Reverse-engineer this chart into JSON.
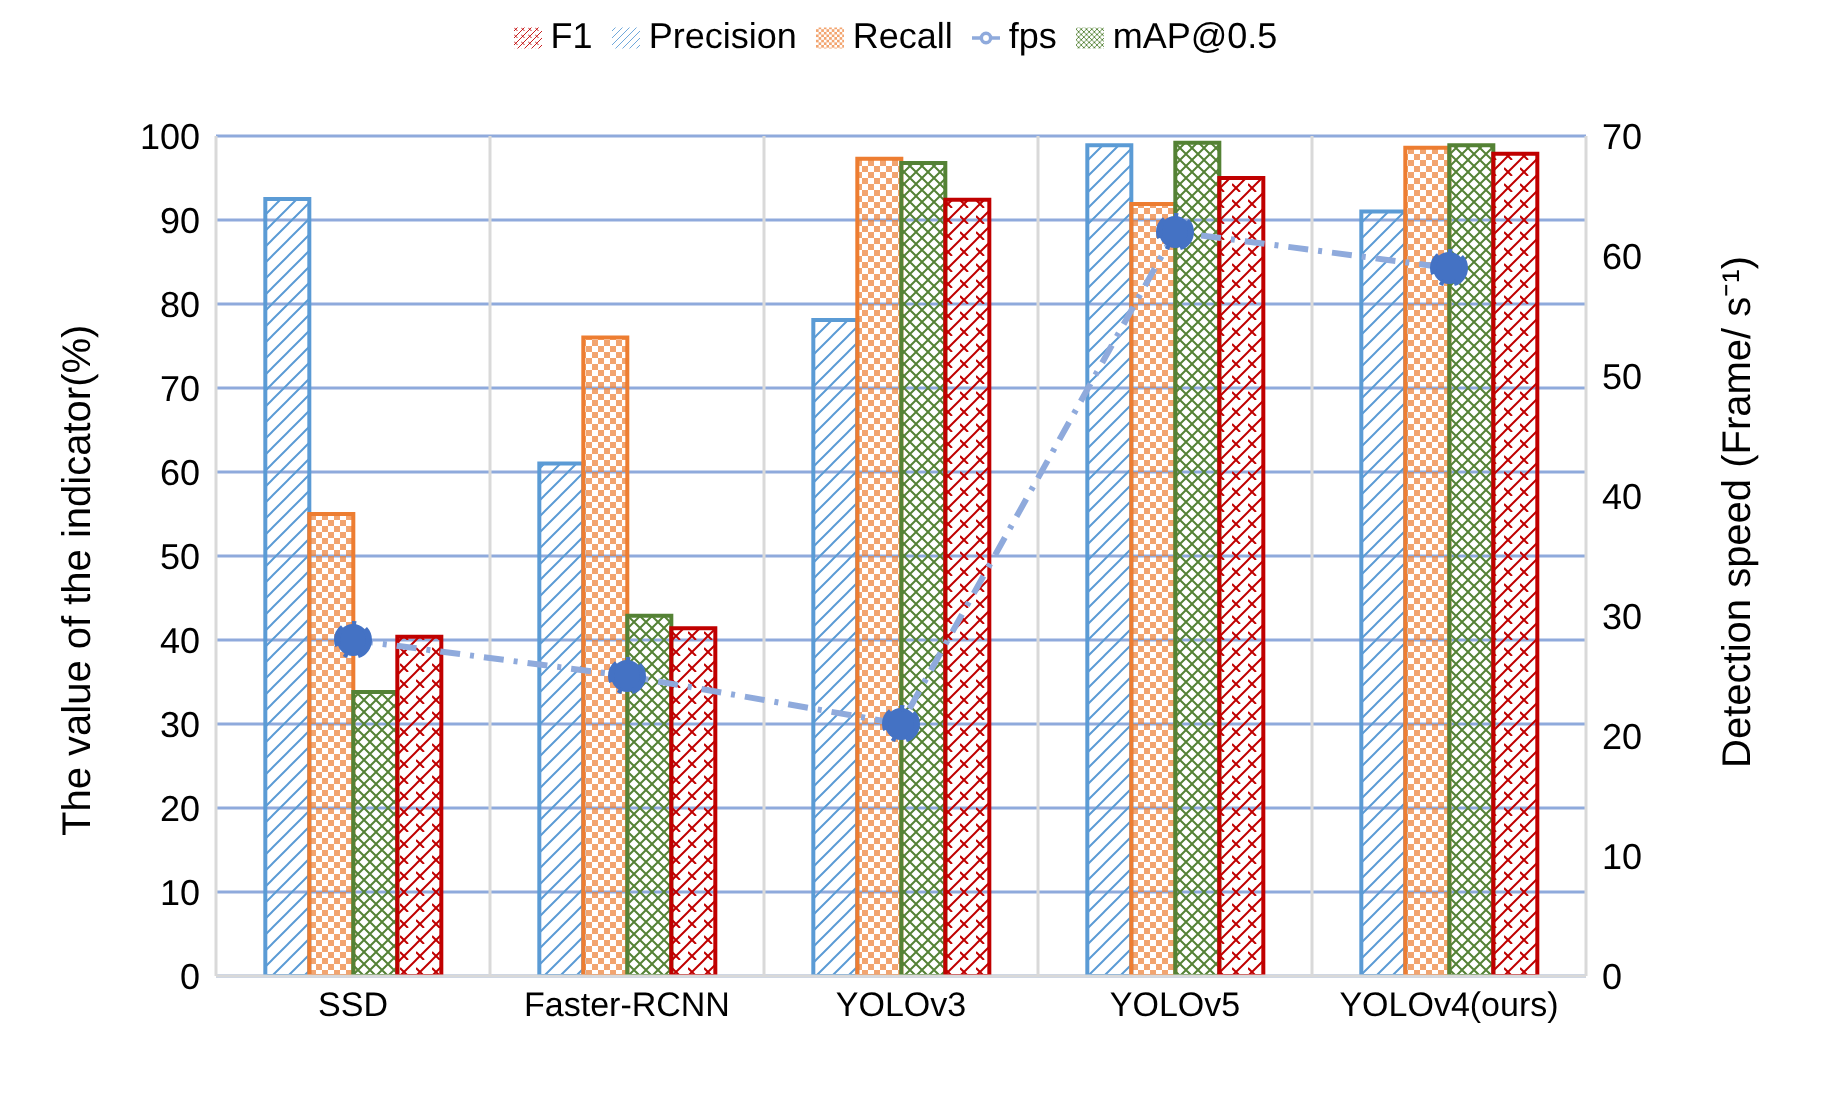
{
  "chart_data": {
    "type": "bar",
    "categories": [
      "SSD",
      "Faster-RCNN",
      "YOLOv3",
      "YOLOv5",
      "YOLOv4(ours)"
    ],
    "ylabel": "The value of the indicator(%)",
    "y2label": "Detection speed (Frame/ s⁻¹)",
    "series": [
      {
        "name": "Precision",
        "color": "#5b9bd5",
        "values": [
          92.5,
          61,
          78.1,
          98.9,
          91
        ]
      },
      {
        "name": "Recall",
        "color": "#ed7d31",
        "values": [
          55,
          76,
          97.3,
          91.9,
          98.6
        ]
      },
      {
        "name": "mAP@0.5",
        "color": "#548235",
        "values": [
          33.8,
          42.9,
          96.8,
          99.2,
          98.9
        ]
      },
      {
        "name": "F1",
        "color": "#c00000",
        "values": [
          40.4,
          41.4,
          92.4,
          95,
          97.9
        ]
      },
      {
        "name": "fps",
        "type": "line",
        "axis": "y2",
        "color": "#4472c4",
        "values": [
          28,
          25,
          21,
          62,
          59
        ],
        "marker": "circle",
        "line_style": "dashed"
      }
    ],
    "ylim": [
      0,
      100
    ],
    "yticks": [
      0,
      10,
      20,
      30,
      40,
      50,
      60,
      70,
      80,
      90,
      100
    ],
    "y2lim": [
      0,
      70
    ],
    "y2ticks": [
      0,
      10,
      20,
      30,
      40,
      50,
      60,
      70
    ],
    "grid": true,
    "legend": "top"
  }
}
